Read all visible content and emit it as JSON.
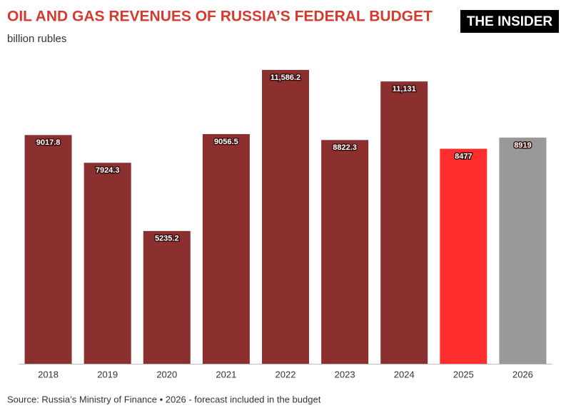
{
  "logo": "THE INSIDER",
  "chart_data": {
    "type": "bar",
    "title": "OIL AND GAS REVENUES OF RUSSIA’S FEDERAL BUDGET",
    "subtitle": "billion rubles",
    "source": "Source: Russia’s Ministry of Finance • 2026 - forecast included in the budget",
    "categories": [
      "2018",
      "2019",
      "2020",
      "2021",
      "2022",
      "2023",
      "2024",
      "2025",
      "2026"
    ],
    "values": [
      9017.8,
      7924.3,
      5235.2,
      9056.5,
      11586.2,
      8822.3,
      11131,
      8477,
      8919
    ],
    "value_labels": [
      "9017.8",
      "7924.3",
      "5235.2",
      "9056.5",
      "11,586.2",
      "8822.3",
      "11,131",
      "8477",
      "8919"
    ],
    "colors": [
      "#8b2f2f",
      "#8b2f2f",
      "#8b2f2f",
      "#8b2f2f",
      "#8b2f2f",
      "#8b2f2f",
      "#8b2f2f",
      "#ff2e2e",
      "#999999"
    ]
  }
}
